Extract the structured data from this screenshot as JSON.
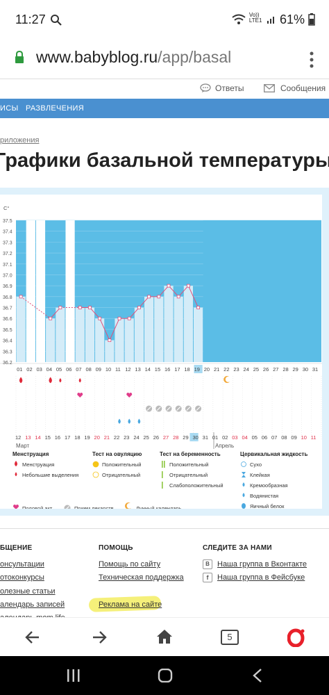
{
  "status_bar": {
    "time": "11:27",
    "battery": "61%",
    "network": "Vo)) LTE1"
  },
  "browser": {
    "url_host": "www.babyblog.ru",
    "url_path": "/app/basal",
    "tab_count": "5"
  },
  "top_links": {
    "answers": "Ответы",
    "messages": "Сообщения"
  },
  "nav": {
    "item1": "ИСЫ",
    "item2": "РАЗВЛЕЧЕНИЯ"
  },
  "breadcrumb": "риложения",
  "page_title": "Графики базальной температуры",
  "chart_data": {
    "type": "bar",
    "ylabel": "C°",
    "ylim": [
      36.2,
      37.5
    ],
    "yticks": [
      "37.5",
      "37.4",
      "37.3",
      "37.2",
      "37.1",
      "37.0",
      "36.9",
      "36.8",
      "36.7",
      "36.6",
      "36.5",
      "36.4",
      "36.3",
      "36.2"
    ],
    "cycle_days": [
      "01",
      "02",
      "03",
      "04",
      "05",
      "06",
      "07",
      "08",
      "09",
      "10",
      "11",
      "12",
      "13",
      "14",
      "15",
      "16",
      "17",
      "18",
      "19",
      "20",
      "21",
      "22",
      "23",
      "24",
      "25",
      "26",
      "27",
      "28",
      "29",
      "30",
      "31"
    ],
    "temperatures": [
      36.8,
      null,
      null,
      36.6,
      36.7,
      null,
      36.7,
      36.7,
      36.6,
      36.4,
      36.6,
      36.6,
      36.7,
      36.8,
      36.8,
      36.9,
      36.8,
      36.9,
      36.7,
      null,
      null,
      null,
      null,
      null,
      null,
      null,
      null,
      null,
      null,
      null,
      null
    ],
    "current_day": "19",
    "calendar_dates": [
      "12",
      "13",
      "14",
      "15",
      "16",
      "17",
      "18",
      "19",
      "20",
      "21",
      "22",
      "23",
      "24",
      "25",
      "26",
      "27",
      "28",
      "29",
      "30",
      "31",
      "01",
      "02",
      "03",
      "04",
      "05",
      "06",
      "07",
      "08",
      "09",
      "10",
      "11"
    ],
    "weekend_dates": [
      "13",
      "14",
      "20",
      "21",
      "27",
      "28",
      "03",
      "04",
      "10",
      "11"
    ],
    "current_date": "30",
    "month_labels": [
      "Март",
      "Апрель"
    ],
    "markers": {
      "menstruation_days": [
        "01",
        "04"
      ],
      "light_bleeding_days": [
        "05",
        "07"
      ],
      "intercourse_days": [
        "07",
        "12"
      ],
      "medication_days": [
        "14",
        "15",
        "16",
        "17",
        "18",
        "19"
      ],
      "watery_fluid_days": [
        "11",
        "12",
        "13"
      ],
      "lunar_days": [
        "22"
      ]
    }
  },
  "legend": {
    "groups": [
      {
        "title": "Менструация",
        "items": [
          "Менструация",
          "Небольшие выделения"
        ]
      },
      {
        "title": "Тест на овуляцию",
        "items": [
          "Положительный",
          "Отрицательный"
        ]
      },
      {
        "title": "Тест на беременность",
        "items": [
          "Положительный",
          "Отрицательный",
          "Слабоположительный"
        ]
      },
      {
        "title": "Цервикальная жидкость",
        "items": [
          "Сухо",
          "Клейкая",
          "Кремообразная",
          "Водянистая",
          "Яичный белок"
        ]
      }
    ],
    "extra": [
      "Половой акт",
      "Прием лекарств",
      "Лунный календарь"
    ]
  },
  "footer": {
    "col1_title": "БЩЕНИЕ",
    "col1_links": [
      "онсультации",
      "отоконкурсы",
      "олезные статьи",
      "алендарь записей",
      "алендарь mom life"
    ],
    "col2_title": "ПОМОЩЬ",
    "col2_links": [
      "Помощь по сайту",
      "Техническая поддержка",
      "Реклама на сайте"
    ],
    "col3_title": "СЛЕДИТЕ ЗА НАМИ",
    "col3_links": [
      "Наша группа в Вконтакте",
      "Наша группа в Фейсбуке"
    ]
  },
  "colors": {
    "accent": "#4a90d0",
    "plot_bg": "#5bbde6",
    "bar": "#d4ecf8",
    "line": "#e0507a",
    "weekend": "#e0304a"
  }
}
